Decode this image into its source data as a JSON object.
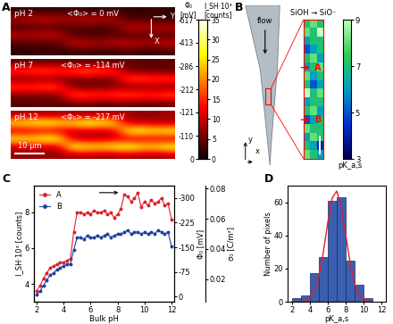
{
  "panel_labels": [
    "A",
    "B",
    "C",
    "D"
  ],
  "images": {
    "cmap_range": [
      0,
      35
    ],
    "colorbar": {
      "ticks": [
        0,
        5,
        10,
        15,
        20,
        25,
        30,
        35
      ],
      "label": "I_SH·10³\n[counts]",
      "phi_label": "Φ₀\n[mV]",
      "phi_ticks": [
        {
          "value": 35,
          "label": "-617"
        },
        {
          "value": 29.17,
          "label": "-413"
        },
        {
          "value": 23.33,
          "label": "-286"
        },
        {
          "value": 17.5,
          "label": "-212"
        },
        {
          "value": 11.67,
          "label": "-121"
        },
        {
          "value": 5.83,
          "label": "-110"
        },
        {
          "value": 0,
          "label": "0"
        }
      ]
    },
    "axis_labels": [
      "Y",
      "X"
    ],
    "scale_bar": "10 μm",
    "panels": [
      {
        "label": "pH 2",
        "mean": "<Φ₀> = 0 mV",
        "values": [
          [
            2,
            3,
            2,
            2,
            3,
            2,
            2,
            3,
            2,
            2,
            3,
            2
          ],
          [
            9,
            10,
            11,
            10,
            9,
            11,
            10,
            9,
            4,
            3,
            3,
            2
          ],
          [
            3,
            3,
            4,
            3,
            3,
            4,
            3,
            4,
            10,
            11,
            9,
            10
          ],
          [
            10,
            9,
            11,
            10,
            4,
            3,
            3,
            4,
            3,
            3,
            4,
            3
          ],
          [
            3,
            4,
            3,
            4,
            11,
            10,
            9,
            10,
            11,
            10,
            9,
            11
          ],
          [
            2,
            2,
            3,
            2,
            2,
            3,
            2,
            2,
            3,
            2,
            2,
            3
          ]
        ]
      },
      {
        "label": "pH 7",
        "mean": "<Φ₀> = -114 mV",
        "values": [
          [
            4,
            5,
            4,
            5,
            4,
            4,
            5,
            4,
            5,
            4,
            4,
            5
          ],
          [
            17,
            18,
            19,
            17,
            18,
            20,
            18,
            17,
            6,
            5,
            5,
            4
          ],
          [
            5,
            5,
            6,
            5,
            5,
            6,
            5,
            6,
            18,
            19,
            17,
            18
          ],
          [
            18,
            17,
            19,
            18,
            6,
            5,
            5,
            6,
            5,
            5,
            6,
            5
          ],
          [
            5,
            6,
            5,
            6,
            19,
            18,
            17,
            18,
            19,
            18,
            17,
            19
          ],
          [
            4,
            4,
            5,
            4,
            4,
            5,
            4,
            4,
            5,
            4,
            4,
            5
          ]
        ]
      },
      {
        "label": "pH 12",
        "mean": "<Φ₀> = -217 mV",
        "values": [
          [
            7,
            8,
            7,
            8,
            7,
            7,
            8,
            7,
            8,
            7,
            7,
            8
          ],
          [
            27,
            29,
            30,
            28,
            27,
            31,
            29,
            28,
            10,
            9,
            9,
            8
          ],
          [
            9,
            9,
            10,
            9,
            9,
            10,
            9,
            10,
            28,
            30,
            27,
            29
          ],
          [
            28,
            27,
            30,
            29,
            10,
            9,
            9,
            10,
            9,
            9,
            10,
            9
          ],
          [
            9,
            10,
            9,
            10,
            30,
            28,
            27,
            29,
            31,
            28,
            27,
            30
          ],
          [
            7,
            7,
            8,
            7,
            7,
            8,
            7,
            7,
            8,
            7,
            7,
            8
          ]
        ]
      }
    ]
  },
  "pka_map": {
    "title": "SiOH → SiO⁻",
    "flow": "flow",
    "axis_labels": [
      "y",
      "x"
    ],
    "markers": [
      "A",
      "B"
    ],
    "colorbar": {
      "range": [
        3,
        9
      ],
      "ticks": [
        3,
        5,
        7,
        9
      ],
      "label": "pK_a,s"
    },
    "values": [
      [
        7,
        8,
        7
      ],
      [
        8,
        7,
        9
      ],
      [
        6,
        7,
        7
      ],
      [
        5,
        6,
        7
      ],
      [
        7,
        8,
        6
      ],
      [
        6,
        7,
        8
      ],
      [
        8,
        6,
        7
      ],
      [
        7,
        5,
        6
      ],
      [
        9,
        7,
        8
      ],
      [
        6,
        7,
        7
      ],
      [
        7,
        8,
        6
      ],
      [
        5,
        6,
        7
      ],
      [
        8,
        7,
        7
      ],
      [
        6,
        8,
        7
      ],
      [
        7,
        6,
        4
      ],
      [
        8,
        7,
        6
      ]
    ]
  },
  "chart_data": [
    {
      "type": "line",
      "xlabel": "Bulk pH",
      "ylabel": "I_SH·10³ [counts]",
      "x": [
        2.0,
        2.25,
        2.5,
        2.75,
        3.0,
        3.25,
        3.5,
        3.75,
        4.0,
        4.25,
        4.5,
        4.75,
        5.0,
        5.25,
        5.5,
        5.75,
        6.0,
        6.25,
        6.5,
        6.75,
        7.0,
        7.25,
        7.5,
        7.75,
        8.0,
        8.25,
        8.5,
        8.75,
        9.0,
        9.25,
        9.5,
        9.75,
        10.0,
        10.25,
        10.5,
        10.75,
        11.0,
        11.25,
        11.5,
        11.75,
        12.0
      ],
      "series": [
        {
          "name": "A",
          "color": "#e0202a",
          "marker": "circle",
          "values": [
            3.6,
            3.9,
            4.3,
            4.6,
            4.9,
            5.0,
            5.1,
            5.2,
            5.2,
            5.3,
            5.4,
            6.9,
            8.0,
            8.0,
            7.9,
            8.0,
            7.9,
            8.1,
            8.0,
            8.0,
            8.1,
            7.9,
            8.0,
            7.7,
            7.9,
            8.2,
            9.0,
            8.9,
            8.6,
            8.8,
            9.1,
            8.3,
            8.6,
            8.4,
            8.7,
            8.5,
            8.6,
            8.8,
            8.4,
            8.5,
            7.6
          ]
        },
        {
          "name": "B",
          "color": "#2040a0",
          "marker": "circle",
          "values": [
            3.4,
            3.6,
            3.9,
            4.2,
            4.5,
            4.6,
            4.8,
            4.9,
            5.0,
            5.1,
            5.1,
            5.9,
            6.6,
            6.6,
            6.5,
            6.7,
            6.6,
            6.6,
            6.7,
            6.6,
            6.7,
            6.8,
            6.6,
            6.7,
            6.8,
            6.8,
            6.9,
            7.0,
            6.8,
            6.9,
            6.9,
            6.8,
            6.9,
            6.8,
            6.9,
            6.8,
            7.0,
            6.9,
            6.8,
            6.9,
            6.1
          ]
        }
      ],
      "xlim": [
        1.8,
        12.2
      ],
      "xticks": [
        2,
        4,
        6,
        8,
        10,
        12
      ],
      "ylim": [
        3,
        9.5
      ],
      "yticks": [
        4,
        6,
        8
      ],
      "y2label": "Φ₀ [mV]",
      "y2lim": [
        15,
        -337
      ],
      "y2ticks": [
        0,
        -75,
        -150,
        -225,
        -300
      ],
      "y3label": "σ₀ [C/m²]",
      "y3lim": [
        0.005,
        0.082
      ],
      "y3ticks": [
        0.02,
        0.04,
        0.06,
        0.08
      ],
      "legend": "upper left"
    },
    {
      "type": "histogram",
      "xlabel": "pK_a,s",
      "ylabel": "Number of pixels",
      "bins": [
        2,
        3,
        4,
        5,
        6,
        7,
        8,
        9,
        10,
        11
      ],
      "counts": [
        2,
        4,
        17,
        27,
        61,
        63,
        25,
        10,
        2
      ],
      "color": "#3a5fb0",
      "fit": {
        "color": "#e0202a",
        "x": [
          2,
          2.5,
          3,
          3.5,
          4,
          4.5,
          5,
          5.5,
          6,
          6.5,
          7,
          7.5,
          8,
          8.5,
          9,
          9.5,
          10,
          10.5,
          11
        ],
        "values": [
          0.0,
          0.02,
          0.12,
          0.56,
          2.1,
          6.2,
          15.1,
          29.8,
          47.9,
          62.7,
          66.7,
          57.7,
          40.6,
          23.2,
          10.9,
          4.1,
          1.3,
          0.3,
          0.06
        ]
      },
      "xlim": [
        1.5,
        12.5
      ],
      "xticks": [
        2,
        4,
        6,
        8,
        10,
        12
      ],
      "ylim": [
        0,
        70
      ],
      "yticks": [
        0,
        20,
        40,
        60
      ]
    }
  ]
}
